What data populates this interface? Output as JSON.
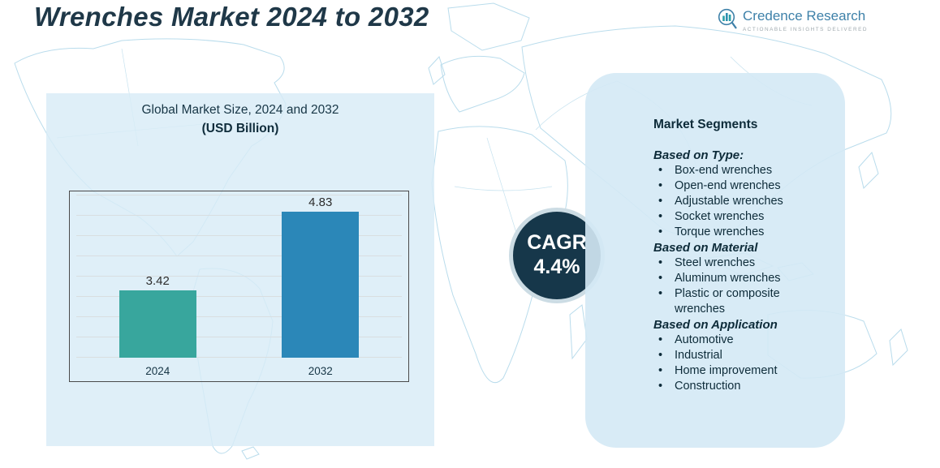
{
  "header": {
    "title": "Wrenches Market 2024 to 2032"
  },
  "logo": {
    "brand": "Credence Research",
    "tagline": "Actionable Insights Delivered"
  },
  "chart": {
    "title": "Global Market Size, 2024 and 2032",
    "subtitle": "(USD Billion)"
  },
  "chart_data": {
    "type": "bar",
    "title": "Global Market Size, 2024 and 2032 (USD Billion)",
    "categories": [
      "2024",
      "2032"
    ],
    "values": [
      3.42,
      4.83
    ],
    "value_labels": [
      "3.42",
      "4.83"
    ],
    "xlabel": "",
    "ylabel": "",
    "ylim": [
      2.2,
      5.2
    ],
    "grid": true,
    "legend": false,
    "bar_colors": [
      "#38a69d",
      "#2b87b8"
    ]
  },
  "cagr": {
    "label": "CAGR",
    "value": "4.4%"
  },
  "segments": {
    "title": "Market Segments",
    "groups": [
      {
        "heading": "Based on Type:",
        "items": [
          "Box-end wrenches",
          "Open-end wrenches",
          "Adjustable wrenches",
          "Socket wrenches",
          "Torque wrenches"
        ]
      },
      {
        "heading": "Based on Material",
        "items": [
          "Steel wrenches",
          "Aluminum wrenches",
          "Plastic or composite wrenches"
        ]
      },
      {
        "heading": "Based on Application",
        "items": [
          "Automotive",
          "Industrial",
          "Home improvement",
          "Construction"
        ]
      }
    ]
  },
  "colors": {
    "title_text": "#1f3848",
    "panel_bg": "#d8ecf6",
    "bar_2024": "#38a69d",
    "bar_2032": "#2b87b8",
    "cagr_circle": "#16374a",
    "cagr_ring": "#ccdce4",
    "map_line": "#b9dcec",
    "brand_text": "#3e81a9"
  }
}
